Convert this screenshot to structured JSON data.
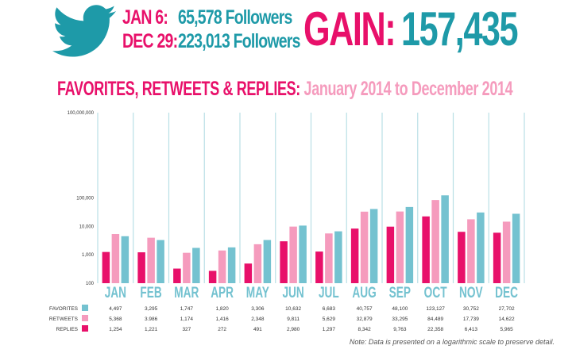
{
  "header": {
    "stat1_date": "JAN 6:",
    "stat1_value": "65,578 Followers",
    "stat2_date": "DEC 29:",
    "stat2_value": "223,013 Followers",
    "gain_label": "GAIN:",
    "gain_value": "157,435"
  },
  "footnote": "Note: Data is presented on a logarithmic scale to preserve detail.",
  "colors": {
    "pink": "#e8106a",
    "light_pink": "#f59bbd",
    "teal": "#1e9aa8",
    "light_teal": "#74c2d0",
    "gridline": "#b9dfe6"
  },
  "icons": [
    "twitter-bird-icon",
    "legend-swatch-favorites",
    "legend-swatch-retweets",
    "legend-swatch-replies"
  ],
  "chart_data": {
    "type": "bar",
    "title": "FAVORITES, RETWEETS & REPLIES:",
    "subtitle": "January 2014 to December 2014",
    "y_scale": "log",
    "ylim": [
      100,
      100000000
    ],
    "y_ticks": [
      100,
      1000,
      10000,
      100000,
      100000000
    ],
    "y_tick_labels": [
      "100",
      "1,000",
      "10,000",
      "100,000",
      "100,000,000"
    ],
    "grid": "vertical",
    "categories": [
      "JAN",
      "FEB",
      "MAR",
      "APR",
      "MAY",
      "JUN",
      "JUL",
      "AUG",
      "SEP",
      "OCT",
      "NOV",
      "DEC"
    ],
    "series": [
      {
        "name": "FAVORITES",
        "color": "#74c2d0",
        "values": [
          4497,
          3295,
          1747,
          1820,
          3306,
          10632,
          6683,
          40757,
          48100,
          123127,
          30752,
          27702
        ],
        "labels": [
          "4,497",
          "3,295",
          "1,747",
          "1,820",
          "3,306",
          "10,632",
          "6,683",
          "40,757",
          "48,100",
          "123,127",
          "30,752",
          "27,702"
        ]
      },
      {
        "name": "RETWEETS",
        "color": "#f59bbd",
        "values": [
          5368,
          3986,
          1174,
          1416,
          2348,
          9811,
          5629,
          32879,
          33295,
          84489,
          17739,
          14622
        ],
        "labels": [
          "5,368",
          "3.986",
          "1,174",
          "1,416",
          "2,348",
          "9,811",
          "5,629",
          "32,879",
          "33,295",
          "84,489",
          "17,739",
          "14,622"
        ]
      },
      {
        "name": "REPLIES",
        "color": "#e8106a",
        "values": [
          1254,
          1221,
          327,
          272,
          491,
          2980,
          1297,
          8342,
          9763,
          22358,
          6413,
          5965
        ],
        "labels": [
          "1,254",
          "1,221",
          "327",
          "272",
          "491",
          "2,980",
          "1,297",
          "8,342",
          "9,763",
          "22,358",
          "6,413",
          "5,965"
        ]
      }
    ]
  }
}
